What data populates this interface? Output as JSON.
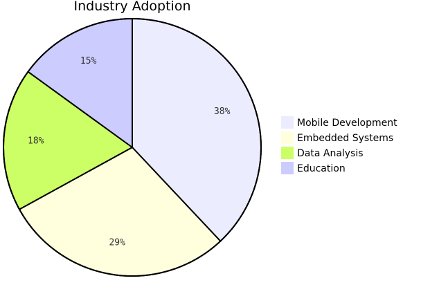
{
  "chart_data": {
    "type": "pie",
    "title": "Industry Adoption",
    "legend_position": "right",
    "slices": [
      {
        "label": "Mobile Development",
        "value": 38,
        "display": "38%",
        "color": "#ECECFF"
      },
      {
        "label": "Embedded Systems",
        "value": 29,
        "display": "29%",
        "color": "#FFFFDE"
      },
      {
        "label": "Data Analysis",
        "value": 18,
        "display": "18%",
        "color": "#CCFF66"
      },
      {
        "label": "Education",
        "value": 15,
        "display": "15%",
        "color": "#CCCCFF"
      }
    ]
  }
}
